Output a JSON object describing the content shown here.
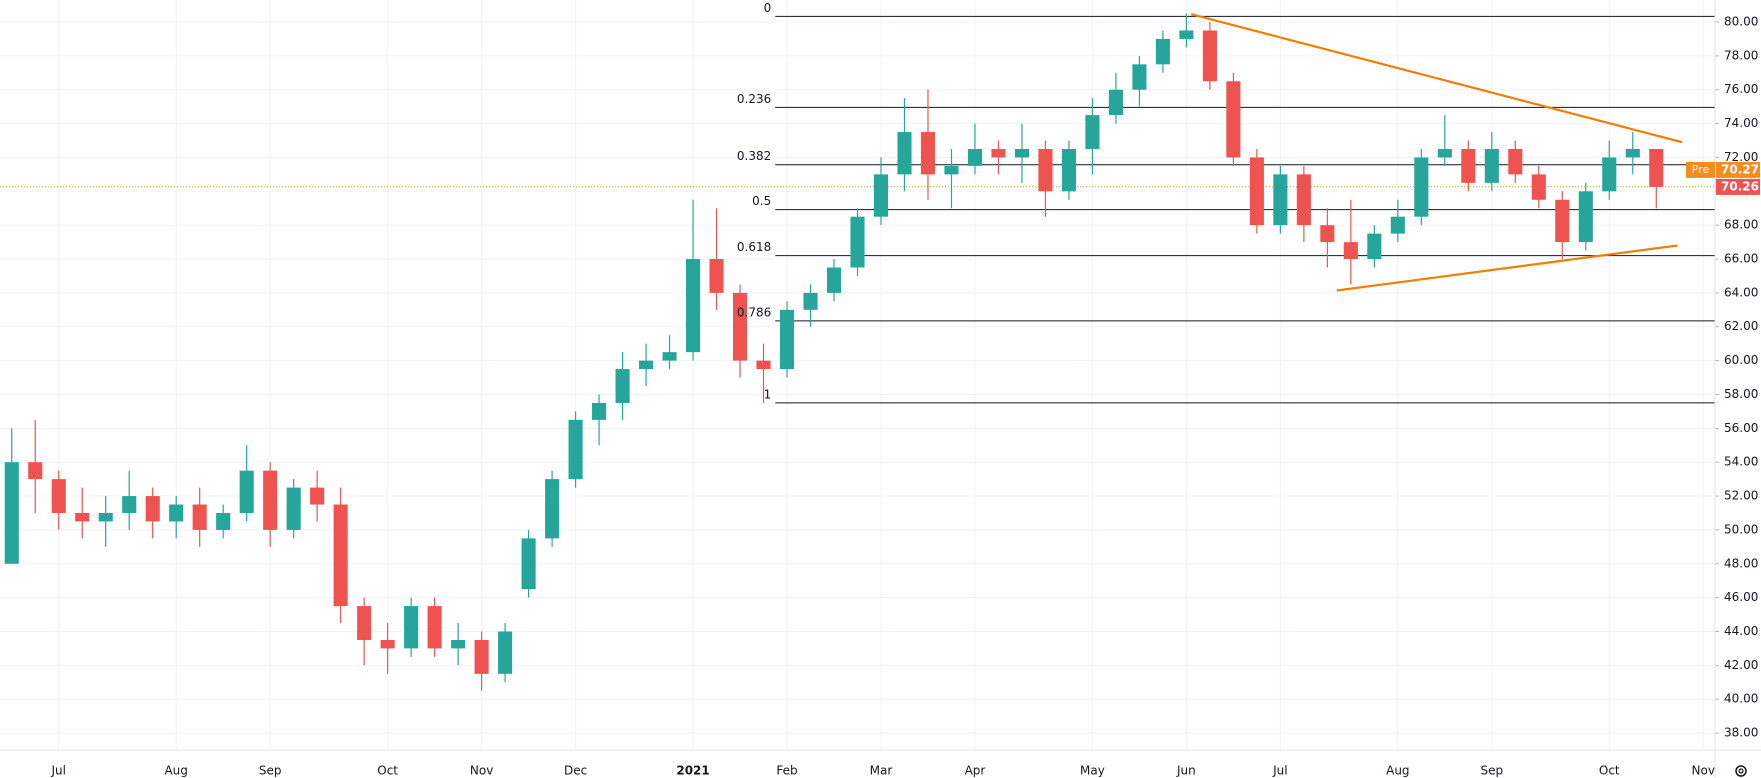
{
  "chart_data": {
    "type": "candlestick",
    "categories": [
      null,
      null,
      "Jul",
      null,
      null,
      null,
      null,
      "Aug",
      null,
      null,
      null,
      "Sep",
      null,
      null,
      null,
      null,
      "Oct",
      null,
      null,
      null,
      "Nov",
      null,
      null,
      null,
      "Dec",
      null,
      null,
      null,
      null,
      "2021",
      null,
      null,
      null,
      "Feb",
      null,
      null,
      null,
      "Mar",
      null,
      null,
      null,
      "Apr",
      null,
      null,
      null,
      null,
      "May",
      null,
      null,
      null,
      "Jun",
      null,
      null,
      null,
      "Jul",
      null,
      null,
      null,
      null,
      "Aug",
      null,
      null,
      null,
      "Sep",
      null,
      null,
      null,
      null,
      "Oct",
      null,
      null,
      null,
      "Nov"
    ],
    "open": [
      48,
      54,
      53,
      51,
      50.5,
      51,
      52,
      50.5,
      51.5,
      50,
      51,
      53.5,
      50,
      52.5,
      51.5,
      45.5,
      43.5,
      43,
      45.5,
      43,
      43.5,
      41.5,
      46.5,
      49.5,
      53,
      56.5,
      57.5,
      59.5,
      60,
      60.5,
      66,
      64,
      60,
      59.5,
      63,
      64,
      65.5,
      68.5,
      71,
      73.5,
      71,
      71.5,
      72.5,
      72,
      72.5,
      70,
      72.5,
      74.5,
      76,
      77.5,
      79,
      79.5,
      76.5,
      72,
      68,
      71,
      68,
      67,
      66,
      67.5,
      68.5,
      72,
      72.5,
      70.5,
      72.5,
      71,
      69.5,
      67,
      70,
      72,
      72.5,
      null,
      null
    ],
    "high": [
      56,
      56.5,
      53.5,
      52.5,
      52,
      53.5,
      52.5,
      52,
      52.5,
      51.5,
      55,
      54,
      53,
      53.5,
      52.5,
      46,
      44.5,
      46,
      46,
      44.5,
      44,
      44.5,
      50,
      53.5,
      57,
      58,
      60.5,
      61,
      61.5,
      69.5,
      69,
      64.5,
      61,
      63.5,
      64.5,
      66,
      69,
      72,
      75.5,
      76,
      72.5,
      74,
      73,
      74,
      73,
      73,
      75.5,
      77,
      78,
      79.5,
      80.5,
      80,
      77,
      72.5,
      71.5,
      71.5,
      69,
      69.5,
      68,
      69.5,
      72.5,
      74.5,
      73,
      73.5,
      73,
      71.5,
      70,
      70.5,
      73,
      73.5,
      72.5,
      null,
      null
    ],
    "low": [
      48,
      51,
      50,
      49.5,
      49,
      50,
      49.5,
      49.5,
      49,
      49.5,
      50.5,
      49,
      49.5,
      50.5,
      44.5,
      42,
      41.5,
      42.5,
      42.5,
      42,
      40.5,
      41,
      46,
      49,
      52.5,
      55,
      56.5,
      58.5,
      59.5,
      60,
      63,
      59,
      57.5,
      59,
      62,
      63.5,
      65,
      68,
      70,
      69.5,
      69,
      71,
      71,
      70.5,
      68.5,
      69.5,
      71,
      74,
      75,
      77,
      78.5,
      76,
      71.5,
      67.5,
      67.5,
      67,
      65.5,
      64.5,
      65.5,
      67,
      68,
      71.5,
      70,
      70,
      70.5,
      69,
      66,
      66.5,
      69.5,
      71,
      69,
      null,
      null
    ],
    "close": [
      54,
      53,
      51,
      50.5,
      51,
      52,
      50.5,
      51.5,
      50,
      51,
      53.5,
      50,
      52.5,
      51.5,
      45.5,
      43.5,
      43,
      45.5,
      43,
      43.5,
      41.5,
      44,
      49.5,
      53,
      56.5,
      57.5,
      59.5,
      60,
      60.5,
      66,
      64,
      60,
      59.5,
      63,
      64,
      65.5,
      68.5,
      71,
      73.5,
      71,
      71.5,
      72.5,
      72,
      72.5,
      70,
      72.5,
      74.5,
      76,
      77.5,
      79,
      79.5,
      76.5,
      72,
      68,
      71,
      68,
      67,
      66,
      67.5,
      68.5,
      72,
      72.5,
      70.5,
      72.5,
      71,
      69.5,
      67,
      70,
      72,
      72.5,
      70.26,
      null,
      null
    ],
    "up_color": "#26a69a",
    "down_color": "#ef5350",
    "ylim": [
      37,
      81.3
    ],
    "yticks": [
      {
        "value": 38,
        "label": "38.00"
      },
      {
        "value": 40,
        "label": "40.00"
      },
      {
        "value": 42,
        "label": "42.00"
      },
      {
        "value": 44,
        "label": "44.00"
      },
      {
        "value": 46,
        "label": "46.00"
      },
      {
        "value": 48,
        "label": "48.00"
      },
      {
        "value": 50,
        "label": "50.00"
      },
      {
        "value": 52,
        "label": "52.00"
      },
      {
        "value": 54,
        "label": "54.00"
      },
      {
        "value": 56,
        "label": "56.00"
      },
      {
        "value": 58,
        "label": "58.00"
      },
      {
        "value": 60,
        "label": "60.00"
      },
      {
        "value": 62,
        "label": "62.00"
      },
      {
        "value": 64,
        "label": "64.00"
      },
      {
        "value": 66,
        "label": "66.00"
      },
      {
        "value": 68,
        "label": "68.00"
      },
      {
        "value": 70,
        "label": "70.00"
      },
      {
        "value": 72,
        "label": "72.00"
      },
      {
        "value": 74,
        "label": "74.00"
      },
      {
        "value": 76,
        "label": "76.00"
      },
      {
        "value": 78,
        "label": "78.00"
      },
      {
        "value": 80,
        "label": "80.00"
      }
    ],
    "grid": true,
    "fib_levels": [
      {
        "label": "0",
        "value": 80.33
      },
      {
        "label": "0.236",
        "value": 74.96
      },
      {
        "label": "0.382",
        "value": 71.57
      },
      {
        "label": "0.5",
        "value": 68.92
      },
      {
        "label": "0.618",
        "value": 66.2
      },
      {
        "label": "0.786",
        "value": 62.35
      },
      {
        "label": "1",
        "value": 57.5
      }
    ],
    "fib_start": 33,
    "trend_lines": [
      {
        "color": "#f57c00",
        "x": [
          50.2,
          71.1
        ],
        "y": [
          80.46,
          72.9
        ]
      },
      {
        "color": "#f57c00",
        "x": [
          56.4,
          70.9
        ],
        "y": [
          64.14,
          66.8
        ]
      }
    ],
    "pre_label": "Pre",
    "pre_price": 70.27,
    "pre_color": "#f68c1f",
    "last_price": 70.26,
    "last_color": "#ef5350"
  }
}
